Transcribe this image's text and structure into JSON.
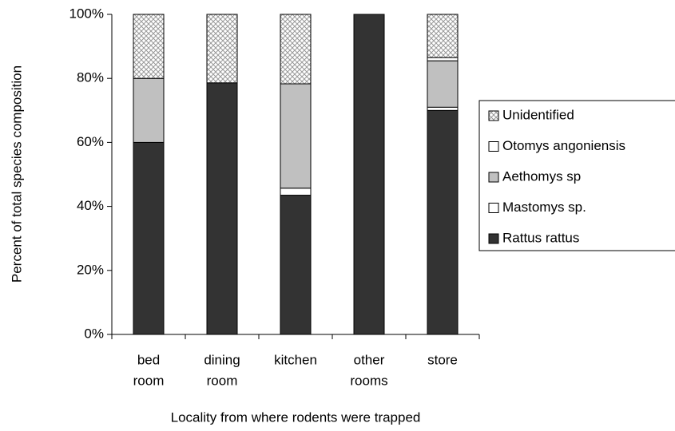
{
  "chart_data": {
    "type": "stacked_bar",
    "x_label": "Locality from where rodents were trapped",
    "y_label": "Percent of total species composition",
    "categories": [
      [
        "bed",
        "room"
      ],
      [
        "dining",
        "room"
      ],
      [
        "kitchen"
      ],
      [
        "other",
        "rooms"
      ],
      [
        "store"
      ]
    ],
    "series": [
      {
        "name": "Rattus rattus",
        "color": "#333333",
        "values": [
          60,
          78.6,
          43.5,
          100,
          70
        ]
      },
      {
        "name": "Mastomys sp.",
        "color": "#ffffff",
        "values": [
          0,
          0,
          2.2,
          0,
          1
        ]
      },
      {
        "name": "Aethomys sp",
        "color": "#c0c0c0",
        "values": [
          20,
          0,
          32.6,
          0,
          14.5
        ]
      },
      {
        "name": "Otomys angoniensis",
        "color": "#ffffff",
        "values": [
          0,
          0,
          0,
          0,
          1
        ]
      },
      {
        "name": "Unidentified",
        "color": "#d0d0d0",
        "pattern": "crosshatch",
        "values": [
          20,
          21.4,
          21.7,
          0,
          13.5
        ]
      }
    ],
    "ylim": [
      0,
      100
    ],
    "yticks": [
      {
        "value": 0,
        "label": "0%"
      },
      {
        "value": 20,
        "label": "20%"
      },
      {
        "value": 40,
        "label": "40%"
      },
      {
        "value": 60,
        "label": "60%"
      },
      {
        "value": 80,
        "label": "80%"
      },
      {
        "value": 100,
        "label": "100%"
      }
    ],
    "grid": false,
    "legend": "right"
  }
}
